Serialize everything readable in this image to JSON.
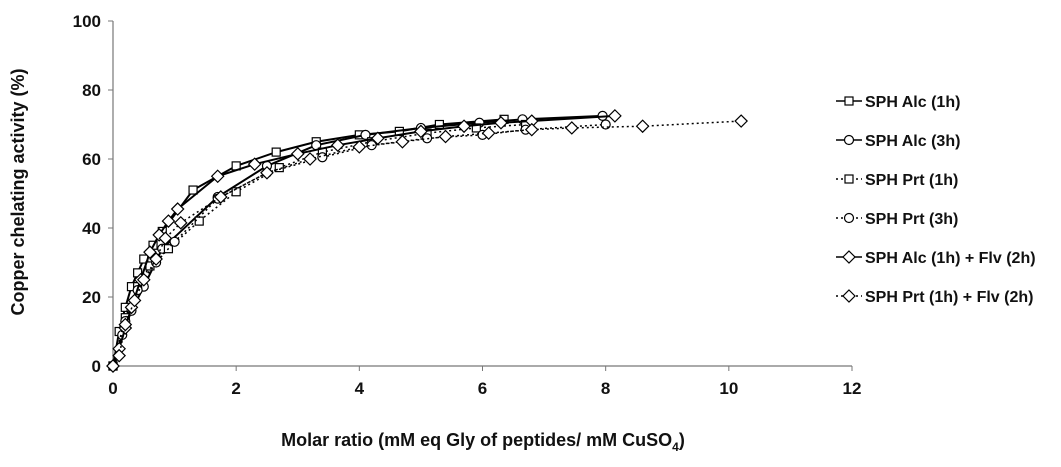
{
  "chart_data": {
    "type": "line",
    "y_label": "Copper chelating activity (%)",
    "x_label_parts": [
      "Molar ratio (mM eq Gly of peptides/ mM CuSO",
      "4",
      ")"
    ],
    "xlim": [
      0,
      12
    ],
    "xticks": [
      0,
      2,
      4,
      6,
      8,
      10,
      12
    ],
    "ylim": [
      0,
      100
    ],
    "yticks": [
      0,
      20,
      40,
      60,
      80,
      100
    ],
    "grid": false,
    "legend_position": "right",
    "series": [
      {
        "name": "SPH Alc (1h)",
        "color": "#000000",
        "line_style": "solid",
        "marker": "square",
        "x": [
          0,
          0.1,
          0.2,
          0.3,
          0.4,
          0.5,
          0.65,
          0.8,
          1.3,
          2.0,
          2.65,
          3.3,
          4.0,
          4.65,
          5.3,
          6.35
        ],
        "values": [
          0,
          10,
          17,
          23,
          27,
          31,
          35,
          39,
          51,
          58,
          62,
          65,
          67,
          68,
          70,
          71.5
        ]
      },
      {
        "name": "SPH Alc (3h)",
        "color": "#000000",
        "line_style": "solid",
        "marker": "circle",
        "x": [
          0,
          0.15,
          0.3,
          0.5,
          0.8,
          1.7,
          2.5,
          3.3,
          4.1,
          5.0,
          5.95,
          6.65,
          7.95
        ],
        "values": [
          0,
          9,
          16,
          23,
          34,
          49,
          58,
          64,
          67,
          69,
          70.5,
          71.5,
          72.5
        ]
      },
      {
        "name": "SPH Prt (1h)",
        "color": "#000000",
        "line_style": "dotted",
        "marker": "square",
        "x": [
          0,
          0.2,
          0.4,
          0.6,
          0.9,
          1.4,
          2.0,
          2.7,
          3.4,
          4.2,
          5.1,
          5.9,
          6.7
        ],
        "values": [
          0,
          14,
          23,
          29,
          34,
          42,
          50.5,
          57.5,
          62,
          65,
          67.5,
          69,
          70
        ]
      },
      {
        "name": "SPH Prt (3h)",
        "color": "#000000",
        "line_style": "dotted",
        "marker": "circle",
        "x": [
          0,
          0.2,
          0.4,
          0.7,
          1.0,
          1.7,
          2.5,
          3.4,
          4.2,
          5.1,
          6.0,
          6.7,
          8.0
        ],
        "values": [
          0,
          13,
          22,
          30,
          36,
          48.5,
          56,
          60.5,
          64,
          66,
          67,
          68.5,
          70
        ]
      },
      {
        "name": "SPH Alc (1h) + Flv (2h)",
        "color": "#000000",
        "line_style": "solid",
        "marker": "diamond",
        "x": [
          0,
          0.1,
          0.2,
          0.3,
          0.45,
          0.6,
          0.75,
          0.9,
          1.05,
          1.7,
          2.3,
          3.0,
          3.65,
          4.3,
          5.0,
          5.7,
          6.3,
          6.8,
          8.15
        ],
        "values": [
          0,
          5,
          11,
          17,
          25,
          33,
          38,
          42,
          45.5,
          55,
          58.5,
          61.5,
          64,
          66,
          68,
          69.5,
          70.5,
          71,
          72.5
        ]
      },
      {
        "name": "SPH Prt (1h) + Flv (2h)",
        "color": "#000000",
        "line_style": "dotted",
        "marker": "diamond",
        "x": [
          0,
          0.1,
          0.2,
          0.35,
          0.5,
          0.7,
          0.85,
          1.1,
          1.75,
          2.5,
          3.2,
          4.0,
          4.7,
          5.4,
          6.1,
          6.8,
          7.45,
          8.6,
          10.2
        ],
        "values": [
          0,
          3,
          12,
          19,
          25,
          31,
          37,
          41.5,
          49,
          56,
          60,
          63.5,
          65,
          66.5,
          67.5,
          68.5,
          69,
          69.5,
          71
        ]
      }
    ]
  }
}
